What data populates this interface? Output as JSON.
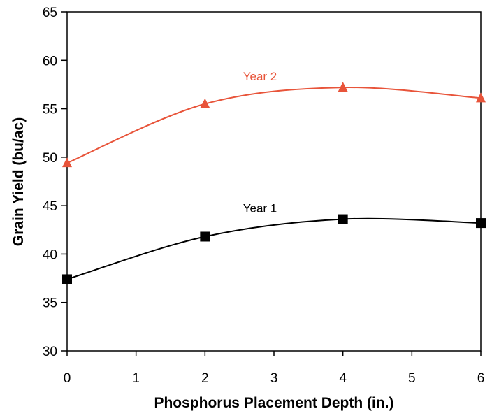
{
  "chart_data": {
    "type": "line",
    "title": "",
    "xlabel": "Phosphorus Placement Depth (in.)",
    "ylabel": "Grain Yield (bu/ac)",
    "xlim": [
      0,
      6
    ],
    "ylim": [
      30,
      65
    ],
    "xticks": [
      "0",
      "1",
      "2",
      "3",
      "4",
      "5",
      "6"
    ],
    "yticks": [
      "30",
      "35",
      "40",
      "45",
      "50",
      "55",
      "60",
      "65"
    ],
    "grid": false,
    "legend": "none",
    "series": [
      {
        "name": "Year 1",
        "color": "#000000",
        "marker": "square",
        "x": [
          0,
          2,
          4,
          6
        ],
        "y": [
          37.4,
          41.8,
          43.6,
          43.2
        ]
      },
      {
        "name": "Year 2",
        "color": "#e8543a",
        "marker": "triangle",
        "x": [
          0,
          2,
          4,
          6
        ],
        "y": [
          49.4,
          55.5,
          57.2,
          56.1
        ]
      }
    ]
  }
}
